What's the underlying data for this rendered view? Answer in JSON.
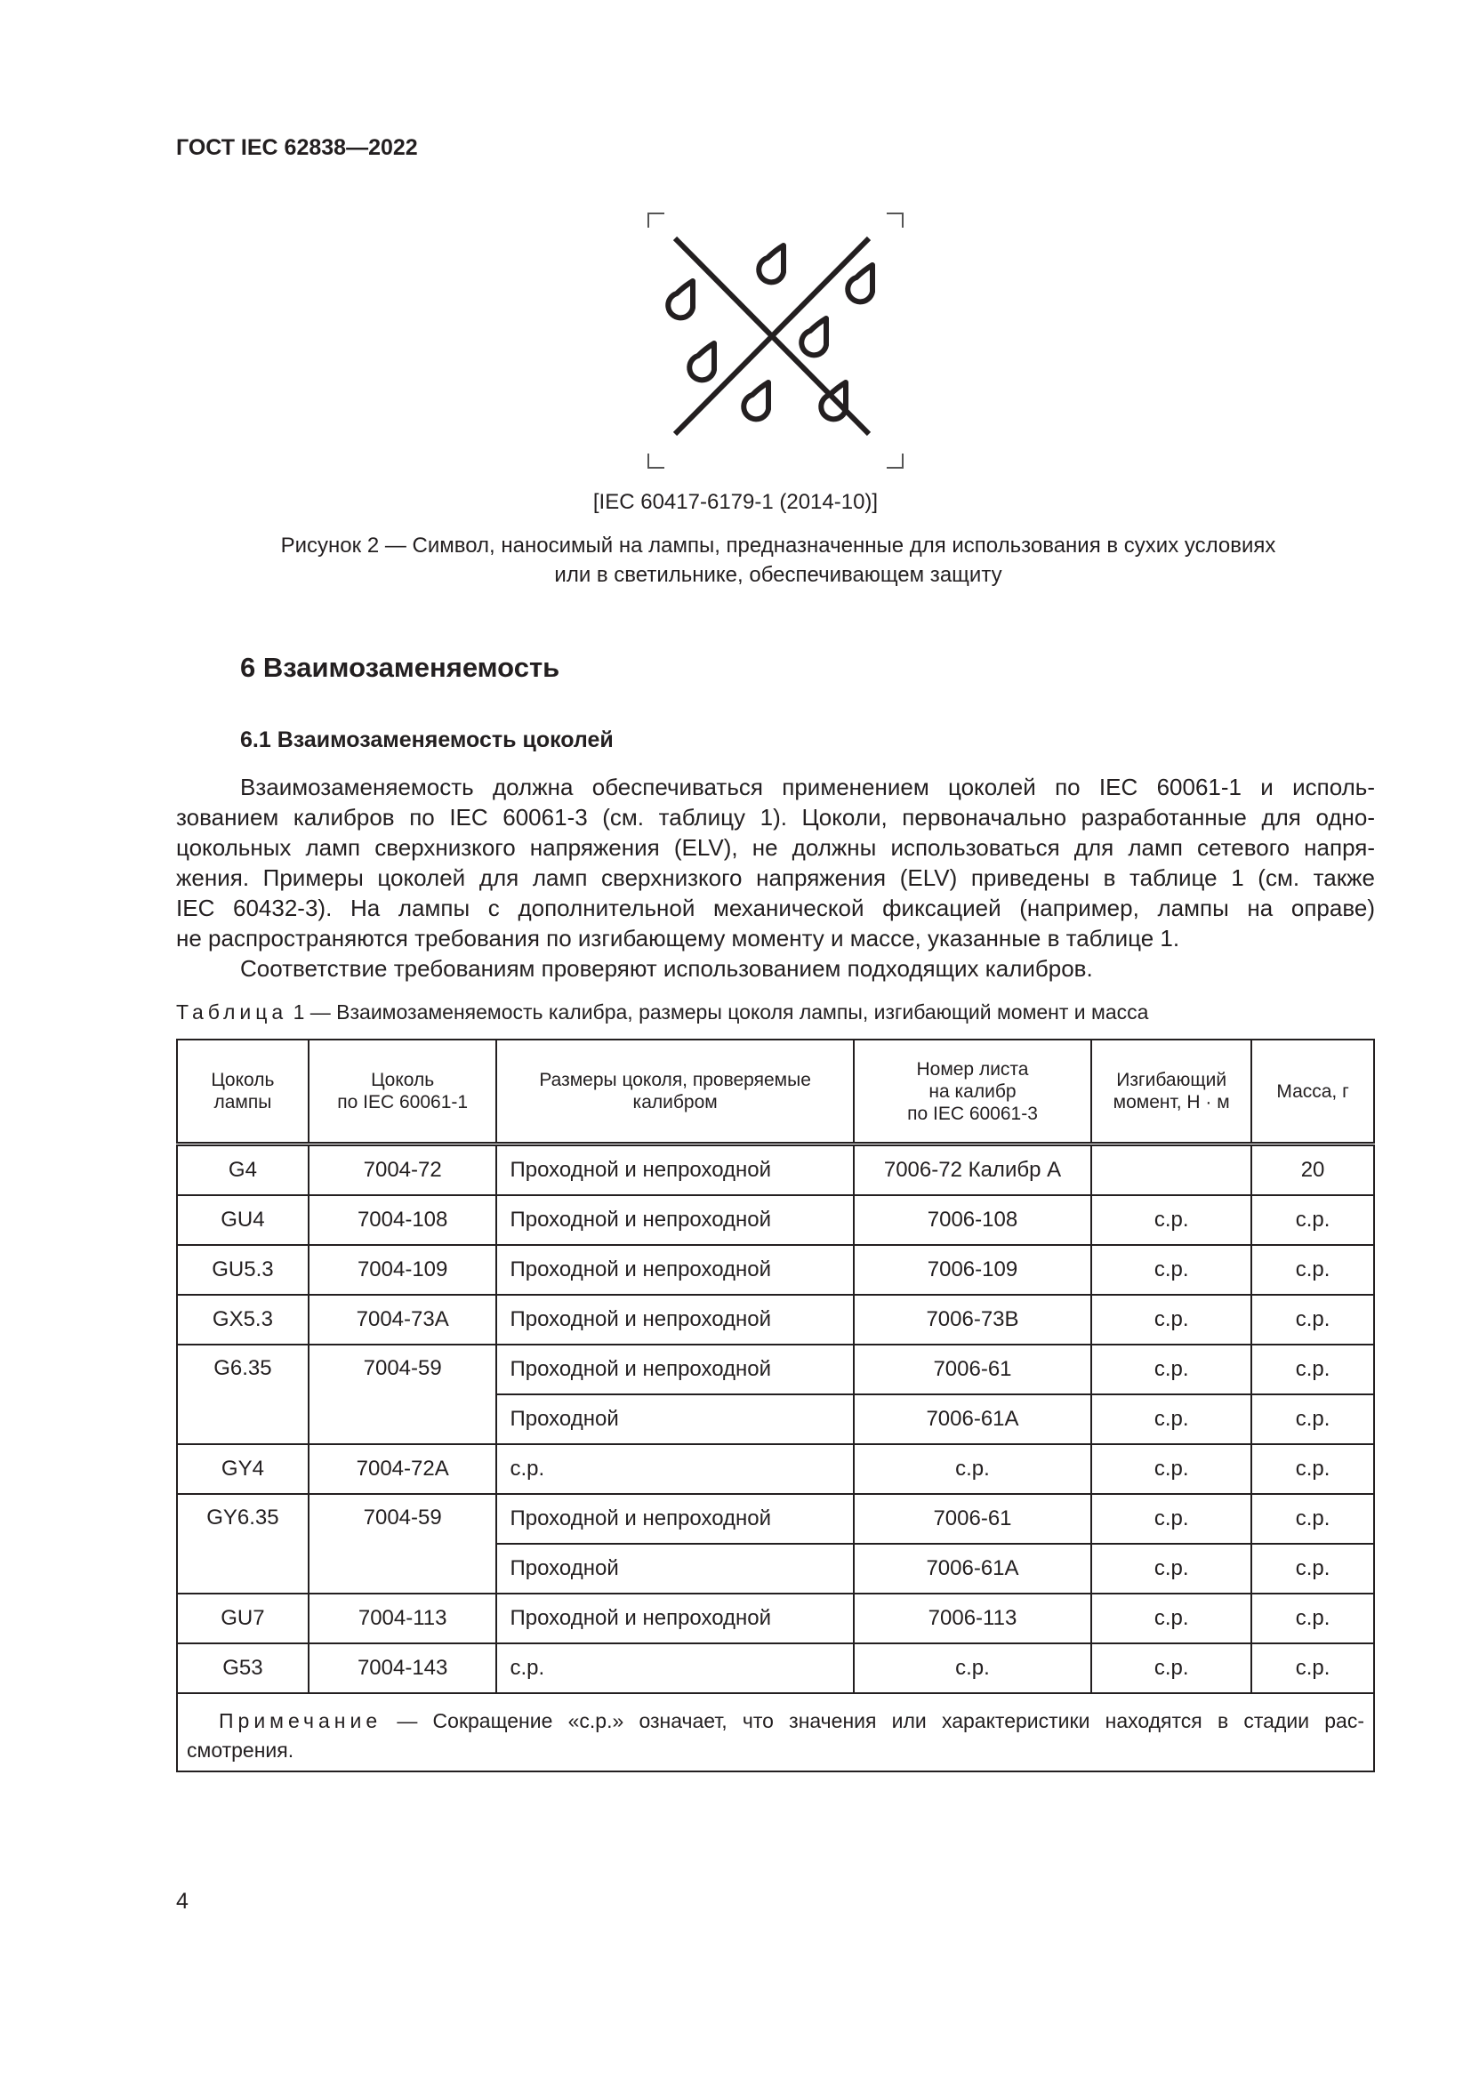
{
  "header": {
    "doc_id": "ГОСТ IEC 62838—2022"
  },
  "figure": {
    "icon": "no-wet-conditions-symbol",
    "source": "[IEC 60417-6179-1 (2014-10)]",
    "caption_line1": "Рисунок 2 — Символ, наносимый на лампы, предназначенные для использования в сухих условиях",
    "caption_line2": "или  в  светильнике, обеспечивающем защиту"
  },
  "section": {
    "title": "6  Взаимозаменяемость"
  },
  "subsection": {
    "title": "6.1  Взаимозаменяемость цоколей"
  },
  "paragraph": {
    "lines": [
      "Взаимозаменяемость должна обеспечиваться применением цоколей по IEC 60061-1 и исполь-",
      "зованием калибров по IEC 60061-3 (см. таблицу 1). Цоколи, первоначально разработанные для одно-",
      "цокольных ламп сверхнизкого напряжения (ELV), не должны использоваться для ламп сетевого напря-",
      "жения. Примеры цоколей для ламп сверхнизкого напряжения (ELV) приведены в таблице 1 (см.  также",
      "IEC 60432-3). На лампы с дополнительной механической фиксацией (например, лампы на оправе)",
      "не распространяются требования по изгибающему моменту и массе, указанные в таблице 1."
    ],
    "compliance": "Соответствие требованиям проверяют использованием подходящих калибров."
  },
  "table": {
    "caption_label": "Таблица",
    "caption_text": " 1 — Взаимозаменяемость калибра, размеры цоколя лампы, изгибающий момент и масса",
    "headers": [
      [
        "Цоколь",
        "лампы"
      ],
      [
        "Цоколь",
        "по  IEC  60061-1"
      ],
      [
        "Размеры цоколя, проверяемые",
        "калибром"
      ],
      [
        "Номер листа",
        "на  калибр",
        "по  IEC 60061-3"
      ],
      [
        "Изгибающий",
        "момент, Н · м"
      ],
      [
        "Масса, г"
      ]
    ],
    "rows": [
      {
        "cap": "G4",
        "iec": "7004-72",
        "dims": "Проходной и непроходной",
        "sheet": "7006-72 Калибр А",
        "moment": "",
        "mass": "20"
      },
      {
        "cap": "GU4",
        "iec": "7004-108",
        "dims": "Проходной и непроходной",
        "sheet": "7006-108",
        "moment": "с.р.",
        "mass": "с.р."
      },
      {
        "cap": "GU5.3",
        "iec": "7004-109",
        "dims": "Проходной и непроходной",
        "sheet": "7006-109",
        "moment": "с.р.",
        "mass": "с.р."
      },
      {
        "cap": "GX5.3",
        "iec": "7004-73A",
        "dims": "Проходной и непроходной",
        "sheet": "7006-73B",
        "moment": "с.р.",
        "mass": "с.р."
      },
      {
        "cap": "G6.35",
        "iec": "7004-59",
        "dims": "Проходной и непроходной",
        "sheet": "7006-61",
        "moment": "с.р.",
        "mass": "с.р.",
        "sub": {
          "dims": "Проходной",
          "sheet": "7006-61A",
          "moment": "с.р.",
          "mass": "с.р."
        }
      },
      {
        "cap": "GY4",
        "iec": "7004-72A",
        "dims": "с.р.",
        "sheet": "с.р.",
        "moment": "с.р.",
        "mass": "с.р."
      },
      {
        "cap": "GY6.35",
        "iec": "7004-59",
        "dims": "Проходной и непроходной",
        "sheet": "7006-61",
        "moment": "с.р.",
        "mass": "с.р.",
        "sub": {
          "dims": "Проходной",
          "sheet": "7006-61A",
          "moment": "с.р.",
          "mass": "с.р."
        }
      },
      {
        "cap": "GU7",
        "iec": "7004-113",
        "dims": "Проходной и непроходной",
        "sheet": "7006-113",
        "moment": "с.р.",
        "mass": "с.р."
      },
      {
        "cap": "G53",
        "iec": "7004-143",
        "dims": "с.р.",
        "sheet": "с.р.",
        "moment": "с.р.",
        "mass": "с.р."
      }
    ],
    "note_label": "Примечание",
    "note_text": " — Сокращение «с.р.» означает, что значения или характеристики находятся в стадии рас-",
    "note_text2": "смотрения."
  },
  "footer": {
    "page_number": "4"
  }
}
